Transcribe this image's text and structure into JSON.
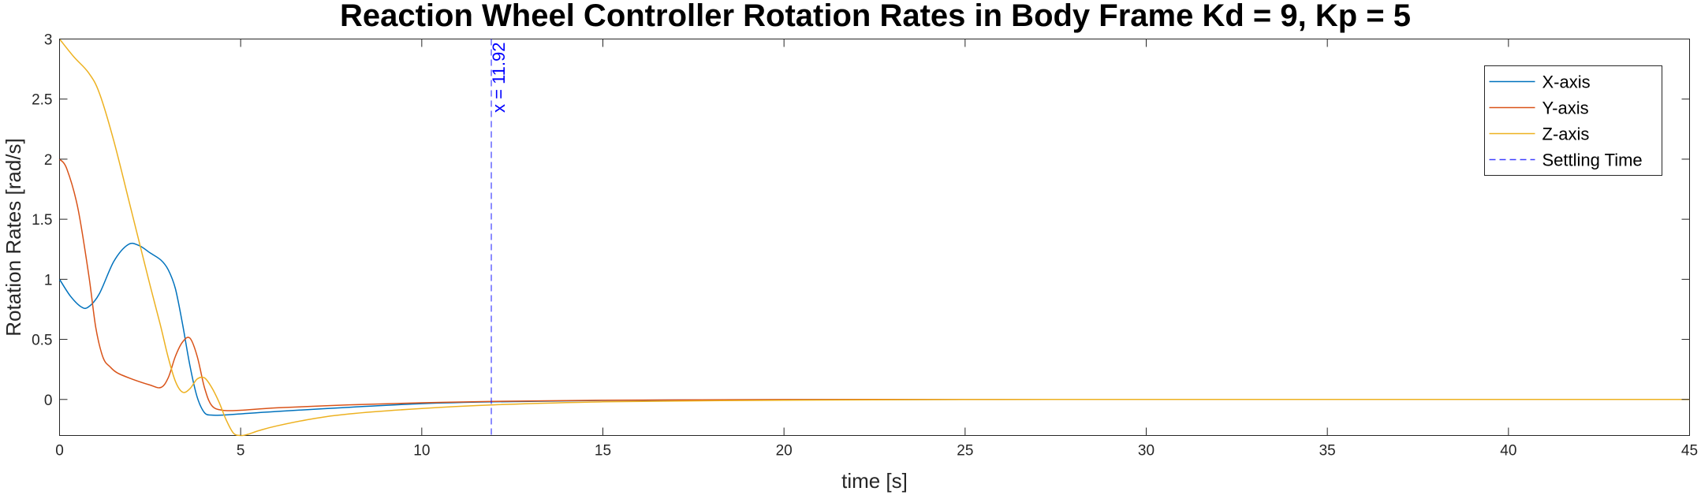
{
  "chart_data": {
    "type": "line",
    "title": "Reaction Wheel Controller Rotation Rates in Body Frame Kd = 9, Kp = 5",
    "xlabel": "time [s]",
    "ylabel": "Rotation Rates  [rad/s]",
    "xlim": [
      0,
      45
    ],
    "ylim": [
      -0.3,
      3
    ],
    "xticks": [
      0,
      5,
      10,
      15,
      20,
      25,
      30,
      35,
      40,
      45
    ],
    "xtick_labels": [
      "0",
      "5",
      "10",
      "15",
      "20",
      "25",
      "30",
      "35",
      "40",
      "45"
    ],
    "yticks": [
      0,
      0.5,
      1,
      1.5,
      2,
      2.5,
      3
    ],
    "ytick_labels": [
      "0",
      "0.5",
      "1",
      "1.5",
      "2",
      "2.5",
      "3"
    ],
    "grid": false,
    "legend_position": "top-right",
    "series": [
      {
        "name": "X-axis",
        "color": "#0072BD",
        "x": [
          0,
          0.3,
          0.6,
          0.8,
          1.1,
          1.5,
          1.9,
          2.2,
          2.5,
          2.8,
          3.0,
          3.2,
          3.4,
          3.6,
          3.8,
          4.0,
          4.2,
          4.5,
          5.0,
          6,
          8,
          10,
          12,
          15,
          20,
          25,
          30,
          35,
          40,
          45
        ],
        "y": [
          1.0,
          0.86,
          0.77,
          0.77,
          0.88,
          1.15,
          1.29,
          1.28,
          1.22,
          1.16,
          1.08,
          0.92,
          0.62,
          0.28,
          0.02,
          -0.11,
          -0.13,
          -0.13,
          -0.12,
          -0.1,
          -0.065,
          -0.035,
          -0.02,
          -0.008,
          -0.002,
          0.0,
          0.0,
          0.0,
          0.0,
          0.0
        ]
      },
      {
        "name": "Y-axis",
        "color": "#D95319",
        "x": [
          0,
          0.2,
          0.5,
          0.8,
          1.0,
          1.2,
          1.4,
          1.6,
          2.0,
          2.5,
          2.8,
          3.0,
          3.2,
          3.4,
          3.6,
          3.8,
          4.0,
          4.2,
          4.5,
          5.0,
          6,
          8,
          10,
          12,
          15,
          20,
          25,
          30,
          35,
          40,
          45
        ],
        "y": [
          2.0,
          1.92,
          1.6,
          1.05,
          0.6,
          0.35,
          0.27,
          0.22,
          0.17,
          0.12,
          0.1,
          0.18,
          0.36,
          0.48,
          0.51,
          0.36,
          0.1,
          -0.05,
          -0.09,
          -0.09,
          -0.07,
          -0.045,
          -0.028,
          -0.016,
          -0.006,
          -0.001,
          0.0,
          0.0,
          0.0,
          0.0,
          0.0
        ]
      },
      {
        "name": "Z-axis",
        "color": "#EDB120",
        "x": [
          0,
          0.4,
          0.8,
          1.1,
          1.5,
          2.0,
          2.5,
          2.8,
          3.0,
          3.2,
          3.4,
          3.6,
          3.8,
          4.0,
          4.2,
          4.4,
          4.6,
          4.8,
          5.0,
          5.2,
          5.5,
          6,
          7,
          8,
          10,
          12,
          15,
          20,
          25,
          30,
          35,
          40,
          45
        ],
        "y": [
          3.0,
          2.85,
          2.72,
          2.55,
          2.15,
          1.55,
          0.95,
          0.6,
          0.35,
          0.15,
          0.06,
          0.09,
          0.17,
          0.18,
          0.1,
          -0.02,
          -0.17,
          -0.28,
          -0.3,
          -0.29,
          -0.26,
          -0.22,
          -0.16,
          -0.12,
          -0.075,
          -0.045,
          -0.02,
          -0.006,
          -0.001,
          0.0,
          0.0,
          0.0,
          0.0
        ]
      }
    ],
    "settling_time": {
      "name": "Settling Time",
      "x": 11.92,
      "color": "#0000FF",
      "label": "x = 11.92"
    },
    "legend": [
      "X-axis",
      "Y-axis",
      "Z-axis",
      "Settling Time"
    ]
  }
}
